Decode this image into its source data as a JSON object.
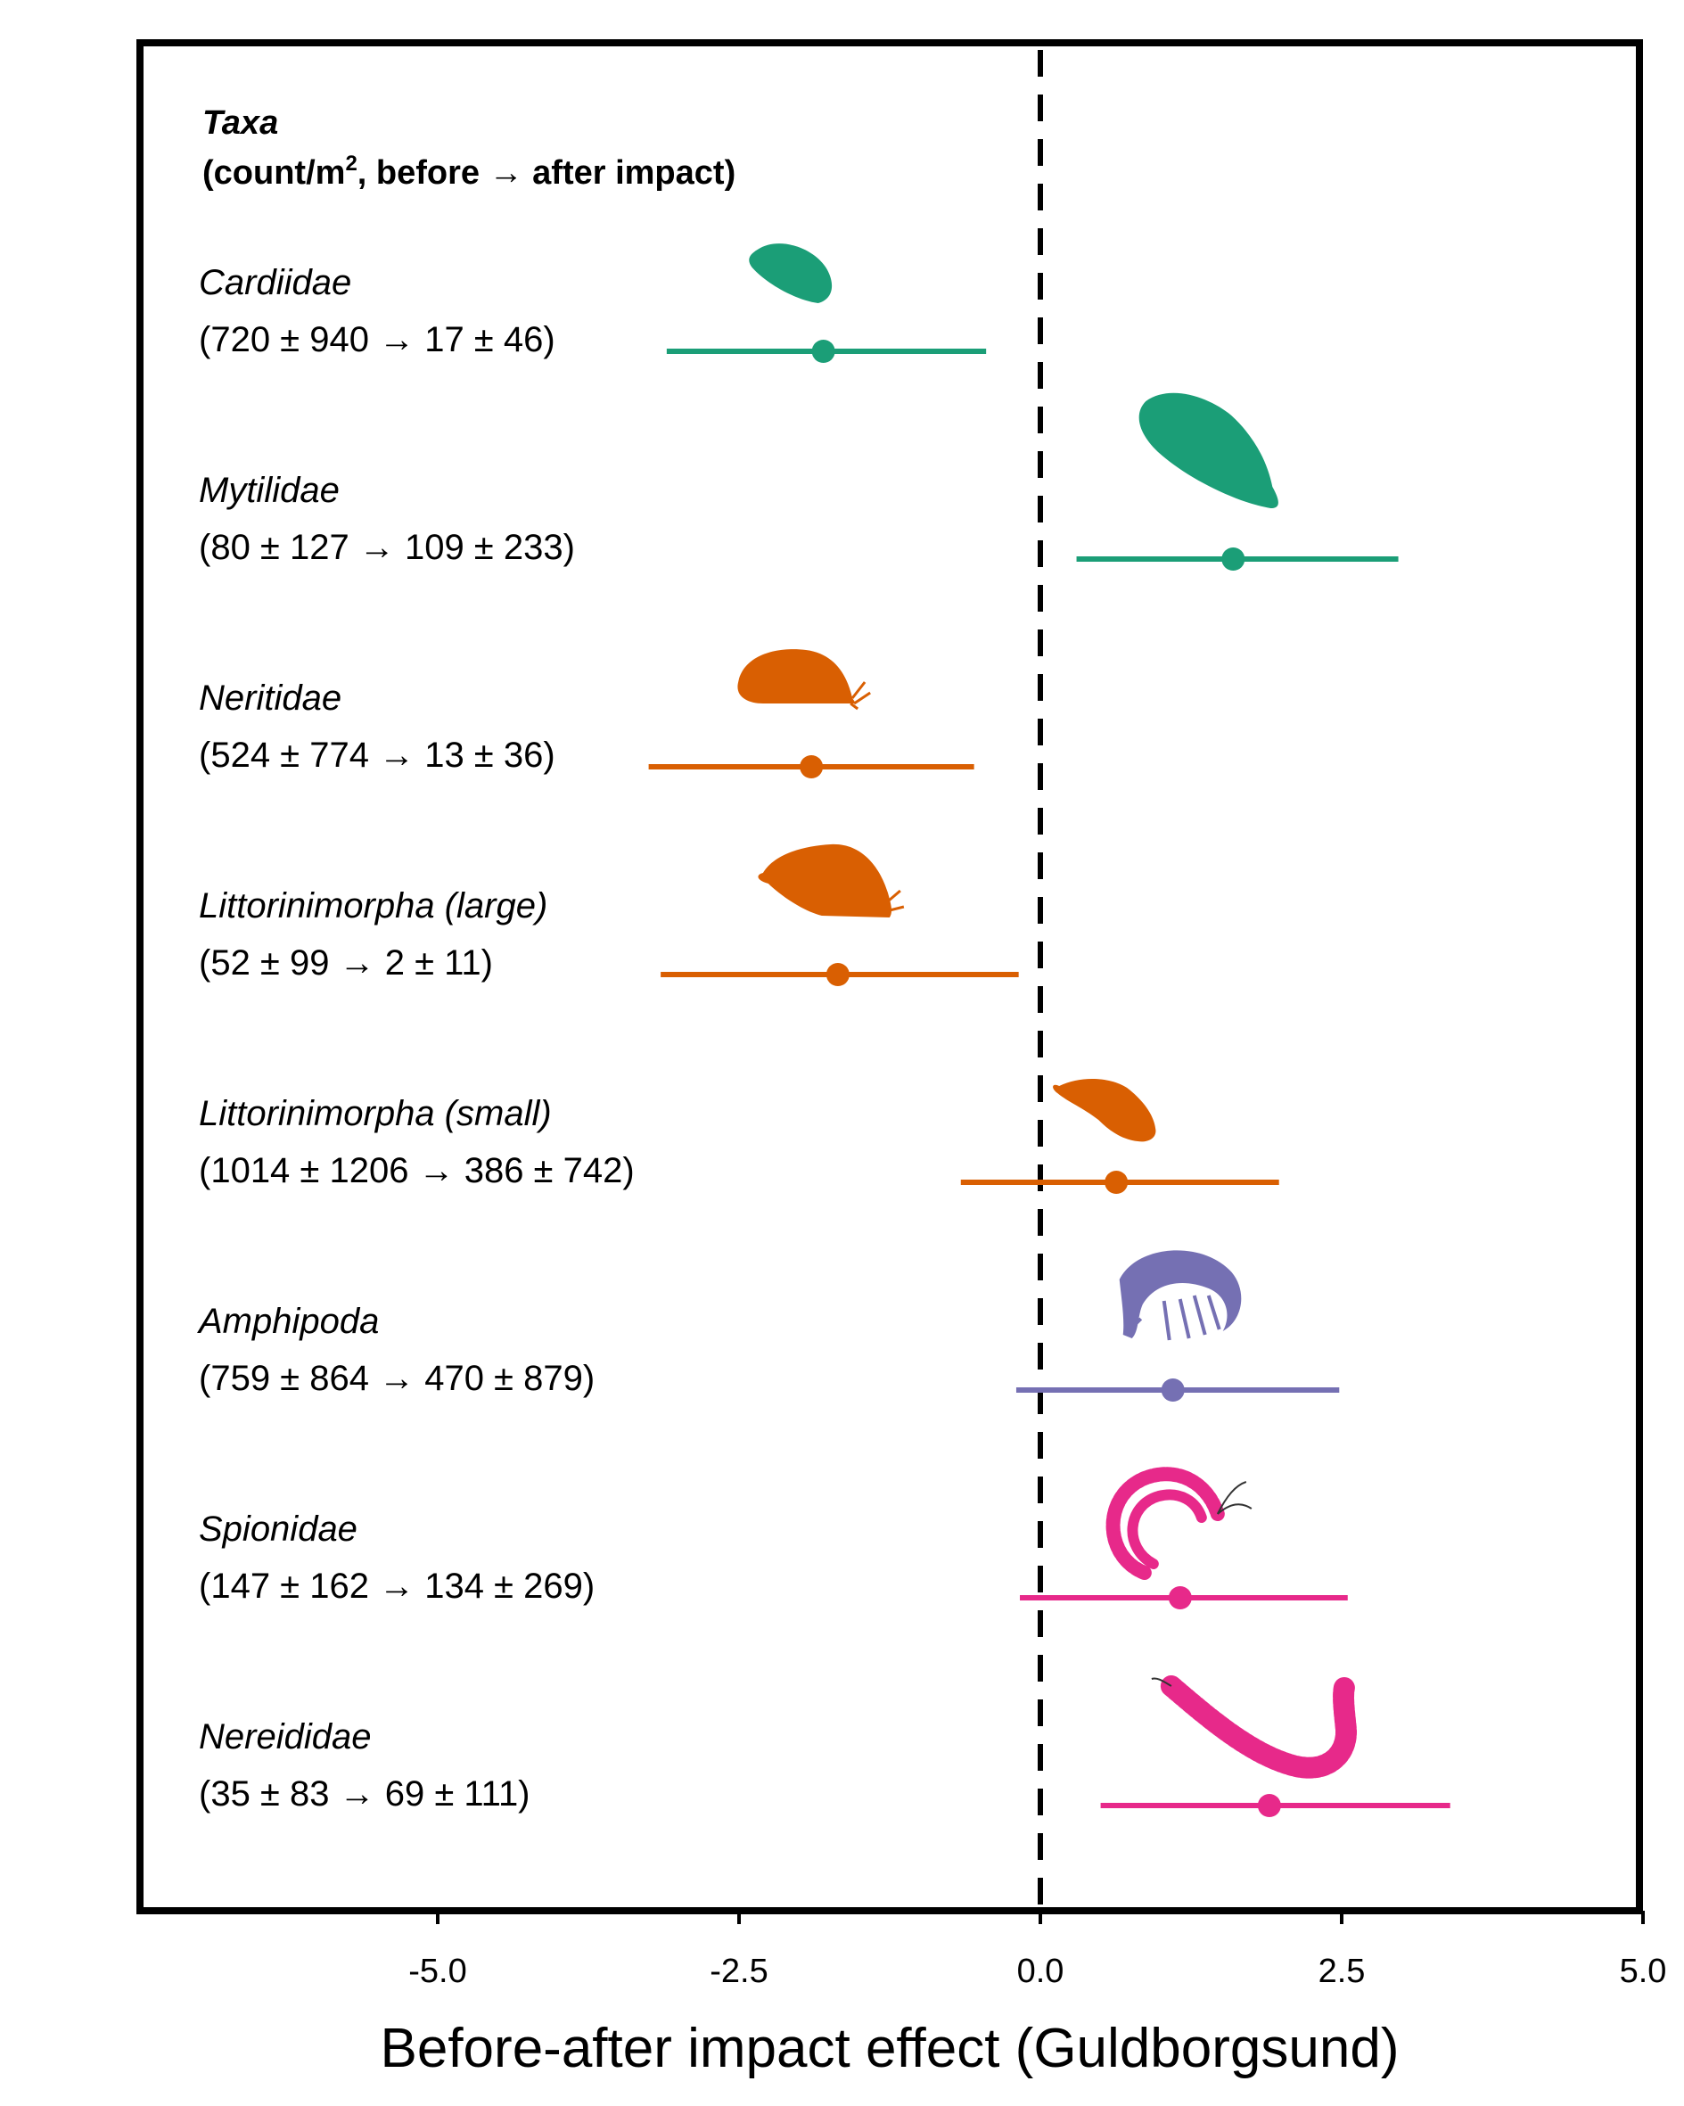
{
  "chart_data": {
    "type": "forest",
    "header": {
      "title": "Taxa",
      "subtitle_pre": "(count/m",
      "subtitle_sup": "2",
      "subtitle_post": ", before → after impact)"
    },
    "xlabel": "Before-after impact effect (Guldborgsund)",
    "xlim": [
      -7.0,
      5.0
    ],
    "xticks": [
      -5.0,
      -2.5,
      0.0,
      2.5,
      5.0
    ],
    "xtick_labels": [
      "-5.0",
      "-2.5",
      "0.0",
      "2.5",
      "5.0"
    ],
    "reference_line": 0.0,
    "rows": [
      {
        "taxon": "Cardiidae",
        "counts": "(720 ± 940 → 17 ± 46)",
        "estimate": -1.8,
        "low": -3.1,
        "high": -0.45,
        "color": "#1b9e77",
        "icon": "cockle-shell-icon"
      },
      {
        "taxon": "Mytilidae",
        "counts": "(80 ± 127 → 109 ± 233)",
        "estimate": 1.6,
        "low": 0.3,
        "high": 2.97,
        "color": "#1b9e77",
        "icon": "mussel-shell-icon"
      },
      {
        "taxon": "Neritidae",
        "counts": "(524 ± 774 → 13 ± 36)",
        "estimate": -1.9,
        "low": -3.25,
        "high": -0.55,
        "color": "#d95f02",
        "icon": "nerite-snail-icon"
      },
      {
        "taxon": "Littorinimorpha (large)",
        "counts": "(52 ± 99 → 2 ± 11)",
        "estimate": -1.68,
        "low": -3.15,
        "high": -0.18,
        "color": "#d95f02",
        "icon": "large-snail-icon"
      },
      {
        "taxon": "Littorinimorpha (small)",
        "counts": "(1014 ± 1206 → 386 ± 742)",
        "estimate": 0.63,
        "low": -0.66,
        "high": 1.98,
        "color": "#d95f02",
        "icon": "small-snail-icon"
      },
      {
        "taxon": "Amphipoda",
        "counts": "(759 ± 864 → 470 ± 879)",
        "estimate": 1.1,
        "low": -0.2,
        "high": 2.48,
        "color": "#7570b3",
        "icon": "amphipod-icon"
      },
      {
        "taxon": "Spionidae",
        "counts": "(147 ± 162 → 134 ± 269)",
        "estimate": 1.16,
        "low": -0.17,
        "high": 2.55,
        "color": "#e7298a",
        "icon": "spionid-worm-icon"
      },
      {
        "taxon": "Nereididae",
        "counts": "(35 ± 83 → 69 ± 111)",
        "estimate": 1.9,
        "low": 0.5,
        "high": 3.4,
        "color": "#e7298a",
        "icon": "ragworm-icon"
      }
    ]
  }
}
